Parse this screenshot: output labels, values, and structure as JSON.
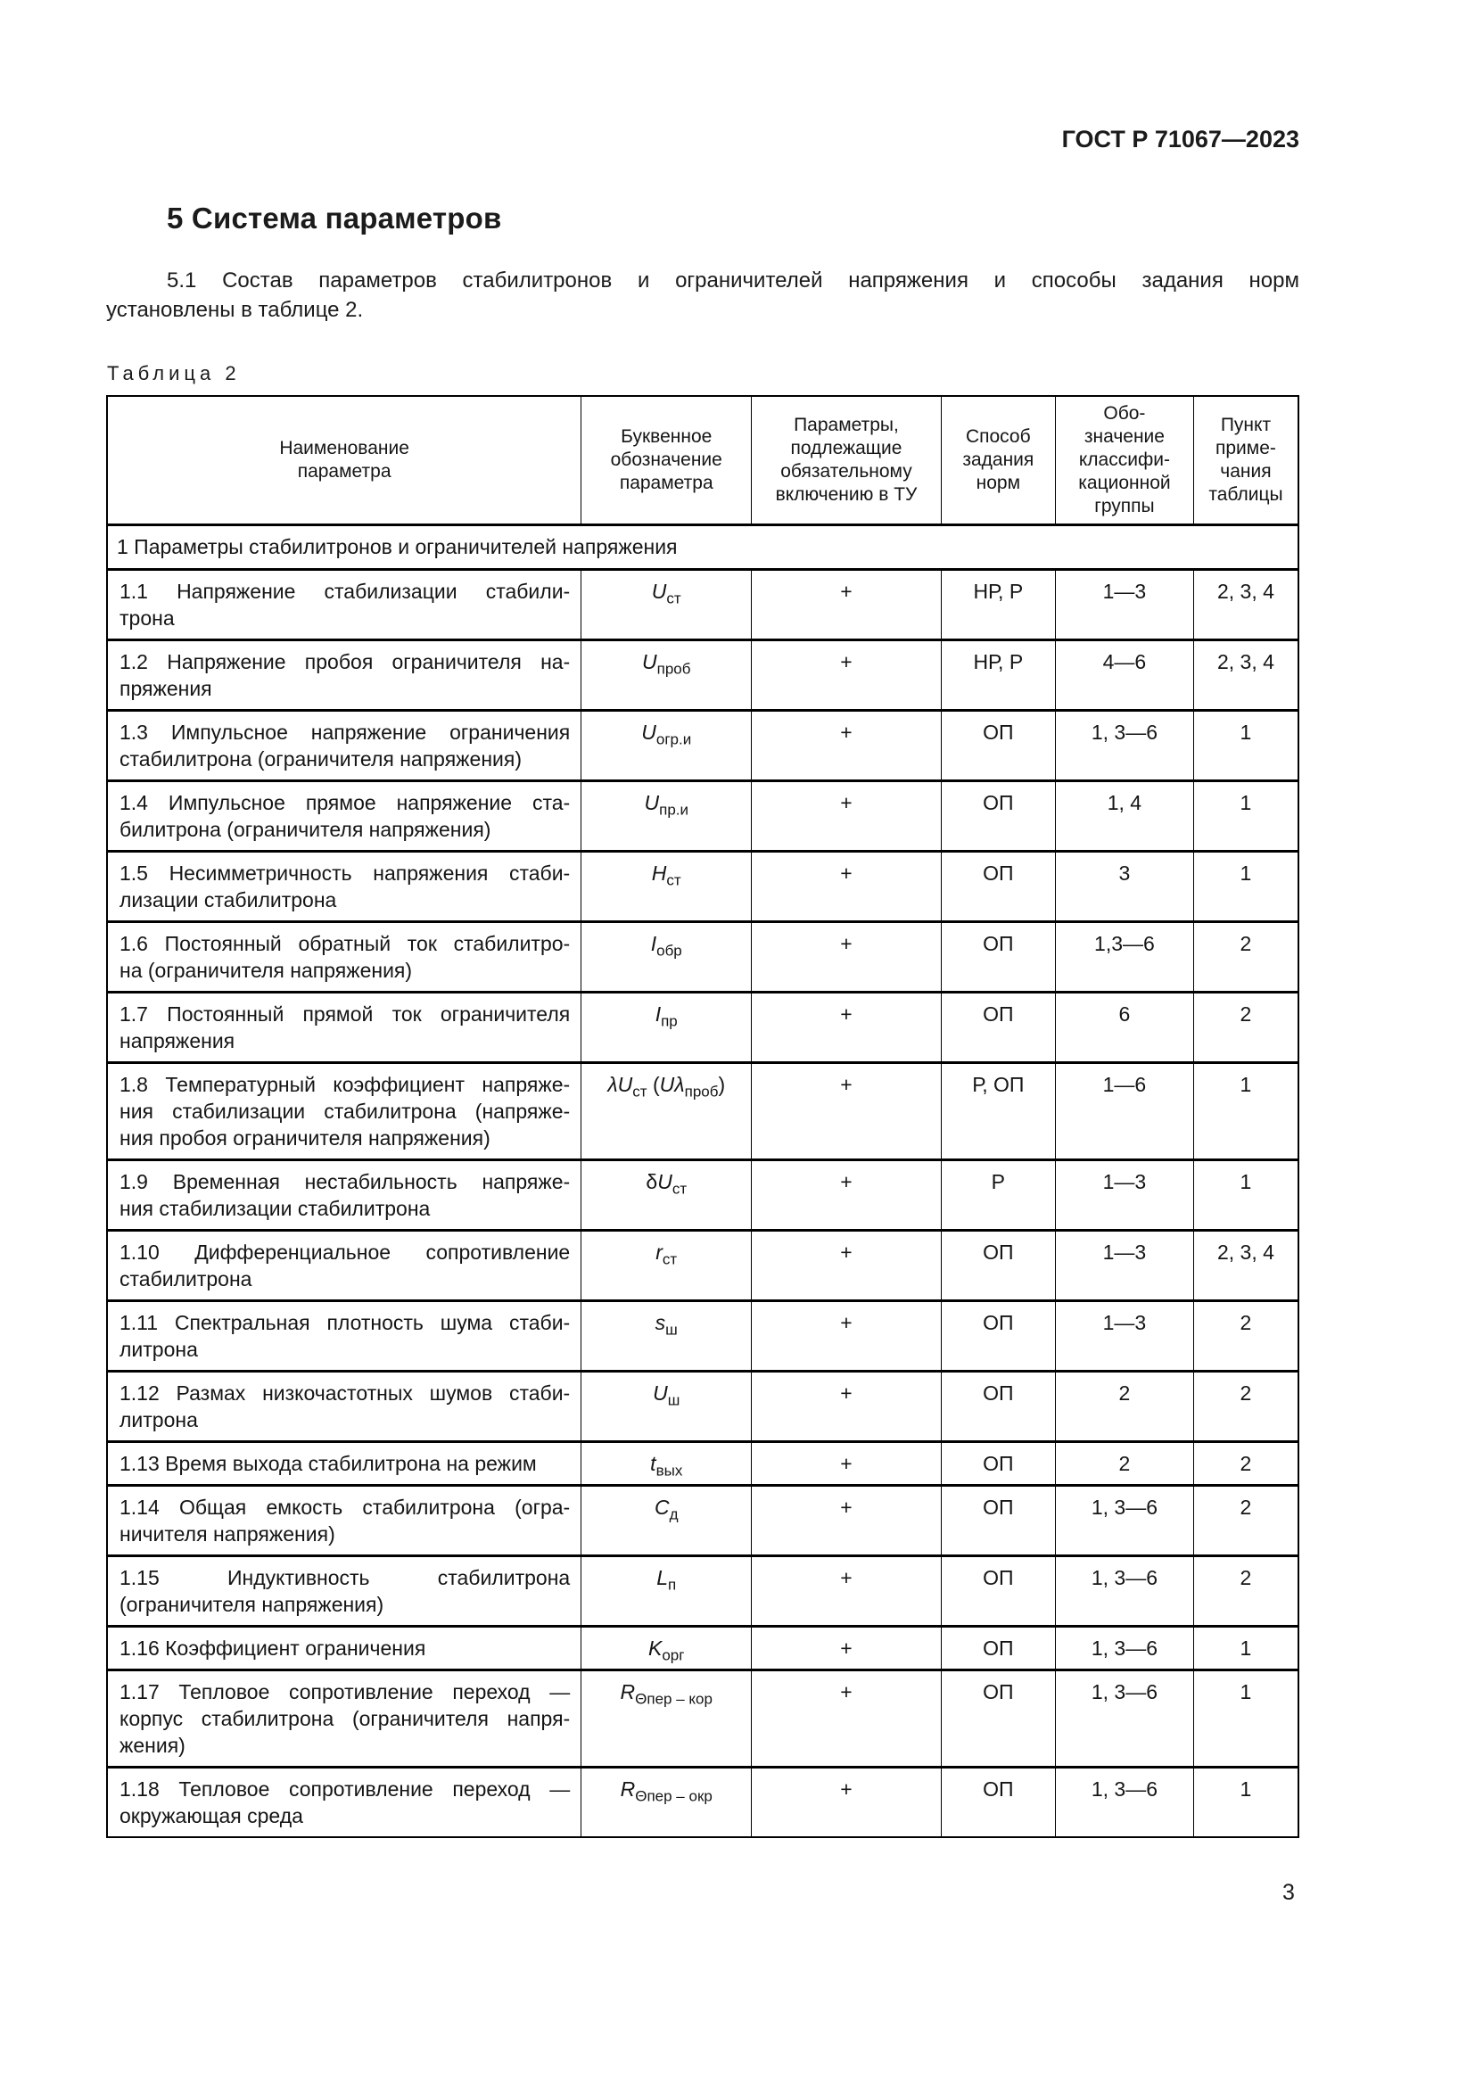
{
  "document": {
    "header_right": "ГОСТ Р 71067—2023",
    "section_heading": "5 Система параметров",
    "paragraph": "5.1 Состав параметров стабилитронов и ограничителей напряжения и способы задания норм\nустановлены в таблице 2.",
    "table_label": "Таблица 2",
    "page_number": "3"
  },
  "table": {
    "column_headers": [
      "Наименование\nпараметра",
      "Буквенное\nобозначение\nпараметра",
      "Параметры,\nподлежащие\nобязательному\nвключению в ТУ",
      "Способ\nзадания\nнорм",
      "Обо-\nзначение\nклассифи-\nкационной\nгруппы",
      "Пункт\nприме-\nчания\nтаблицы"
    ],
    "section_row": "1 Параметры стабилитронов и ограничителей напряжения",
    "rows": [
      {
        "name": "1.1 Напряжение стабилизации стабили-\nтрона",
        "symbol": [
          [
            "U",
            "i"
          ],
          [
            "ст",
            "sub"
          ]
        ],
        "mandatory": "+",
        "method": "НР, Р",
        "group": "1—3",
        "note": "2, 3, 4"
      },
      {
        "name": "1.2 Напряжение пробоя ограничителя на-\nпряжения",
        "symbol": [
          [
            "U",
            "i"
          ],
          [
            "проб",
            "sub"
          ]
        ],
        "mandatory": "+",
        "method": "НР, Р",
        "group": "4—6",
        "note": "2, 3, 4"
      },
      {
        "name": "1.3 Импульсное напряжение ограничения\nстабилитрона (ограничителя напряжения)",
        "symbol": [
          [
            "U",
            "i"
          ],
          [
            "огр.и",
            "sub"
          ]
        ],
        "mandatory": "+",
        "method": "ОП",
        "group": "1, 3—6",
        "note": "1"
      },
      {
        "name": "1.4 Импульсное прямое напряжение ста-\nбилитрона (ограничителя напряжения)",
        "symbol": [
          [
            "U",
            "i"
          ],
          [
            "пр.и",
            "sub"
          ]
        ],
        "mandatory": "+",
        "method": "ОП",
        "group": "1, 4",
        "note": "1"
      },
      {
        "name": "1.5 Несимметричность напряжения стаби-\nлизации стабилитрона",
        "symbol": [
          [
            "H",
            "i"
          ],
          [
            "ст",
            "sub"
          ]
        ],
        "mandatory": "+",
        "method": "ОП",
        "group": "3",
        "note": "1"
      },
      {
        "name": "1.6 Постоянный обратный ток стабилитро-\nна (ограничителя напряжения)",
        "symbol": [
          [
            "I",
            "i"
          ],
          [
            "обр",
            "sub"
          ]
        ],
        "mandatory": "+",
        "method": "ОП",
        "group": "1,3—6",
        "note": "2"
      },
      {
        "name": "1.7 Постоянный прямой ток ограничителя\nнапряжения",
        "symbol": [
          [
            "I",
            "i"
          ],
          [
            "пр",
            "sub"
          ]
        ],
        "mandatory": "+",
        "method": "ОП",
        "group": "6",
        "note": "2"
      },
      {
        "name": "1.8 Температурный коэффициент напряже-\nния стабилизации стабилитрона (напряже-\nния пробоя ограничителя напряжения)",
        "symbol": [
          [
            "λ",
            "i"
          ],
          [
            "U",
            "i"
          ],
          [
            "ст",
            "sub"
          ],
          [
            " ("
          ],
          [
            "U",
            "i"
          ],
          [
            "λ",
            "i"
          ],
          [
            "проб",
            "sub"
          ],
          [
            ")"
          ]
        ],
        "mandatory": "+",
        "method": "Р, ОП",
        "group": "1—6",
        "note": "1"
      },
      {
        "name": "1.9 Временная нестабильность напряже-\nния стабилизации стабилитрона",
        "symbol": [
          [
            "δ"
          ],
          [
            "U",
            "i"
          ],
          [
            "ст",
            "sub"
          ]
        ],
        "mandatory": "+",
        "method": "Р",
        "group": "1—3",
        "note": "1"
      },
      {
        "name": "1.10 Дифференциальное сопротивление\nстабилитрона",
        "symbol": [
          [
            "r",
            "i"
          ],
          [
            "ст",
            "sub"
          ]
        ],
        "mandatory": "+",
        "method": "ОП",
        "group": "1—3",
        "note": "2, 3, 4"
      },
      {
        "name": "1.11 Спектральная плотность шума стаби-\nлитрона",
        "symbol": [
          [
            "s",
            "i"
          ],
          [
            "ш",
            "sub"
          ]
        ],
        "mandatory": "+",
        "method": "ОП",
        "group": "1—3",
        "note": "2"
      },
      {
        "name": "1.12 Размах низкочастотных шумов стаби-\nлитрона",
        "symbol": [
          [
            "U",
            "i"
          ],
          [
            "ш",
            "sub"
          ]
        ],
        "mandatory": "+",
        "method": "ОП",
        "group": "2",
        "note": "2"
      },
      {
        "name": "1.13 Время выхода стабилитрона на режим",
        "symbol": [
          [
            "t",
            "i"
          ],
          [
            "вых",
            "sub"
          ]
        ],
        "mandatory": "+",
        "method": "ОП",
        "group": "2",
        "note": "2"
      },
      {
        "name": "1.14 Общая емкость стабилитрона (огра-\nничителя напряжения)",
        "symbol": [
          [
            "C",
            "i"
          ],
          [
            "д",
            "sub"
          ]
        ],
        "mandatory": "+",
        "method": "ОП",
        "group": "1, 3—6",
        "note": "2"
      },
      {
        "name": "1.15 Индуктивность стабилитрона\n(ограничителя напряжения)",
        "symbol": [
          [
            "L",
            "i"
          ],
          [
            "п",
            "sub"
          ]
        ],
        "mandatory": "+",
        "method": "ОП",
        "group": "1, 3—6",
        "note": "2"
      },
      {
        "name": "1.16 Коэффициент ограничения",
        "symbol": [
          [
            "K",
            "i"
          ],
          [
            "орг",
            "sub"
          ]
        ],
        "mandatory": "+",
        "method": "ОП",
        "group": "1, 3—6",
        "note": "1"
      },
      {
        "name": "1.17 Тепловое сопротивление переход —\nкорпус стабилитрона (ограничителя напря-\nжения)",
        "symbol": [
          [
            "R",
            "i"
          ],
          [
            "Θпер – кор",
            "sub"
          ]
        ],
        "mandatory": "+",
        "method": "ОП",
        "group": "1, 3—6",
        "note": "1"
      },
      {
        "name": "1.18 Тепловое сопротивление переход —\nокружающая среда",
        "symbol": [
          [
            "R",
            "i"
          ],
          [
            "Θпер – окр",
            "sub"
          ]
        ],
        "mandatory": "+",
        "method": "ОП",
        "group": "1, 3—6",
        "note": "1"
      }
    ]
  }
}
